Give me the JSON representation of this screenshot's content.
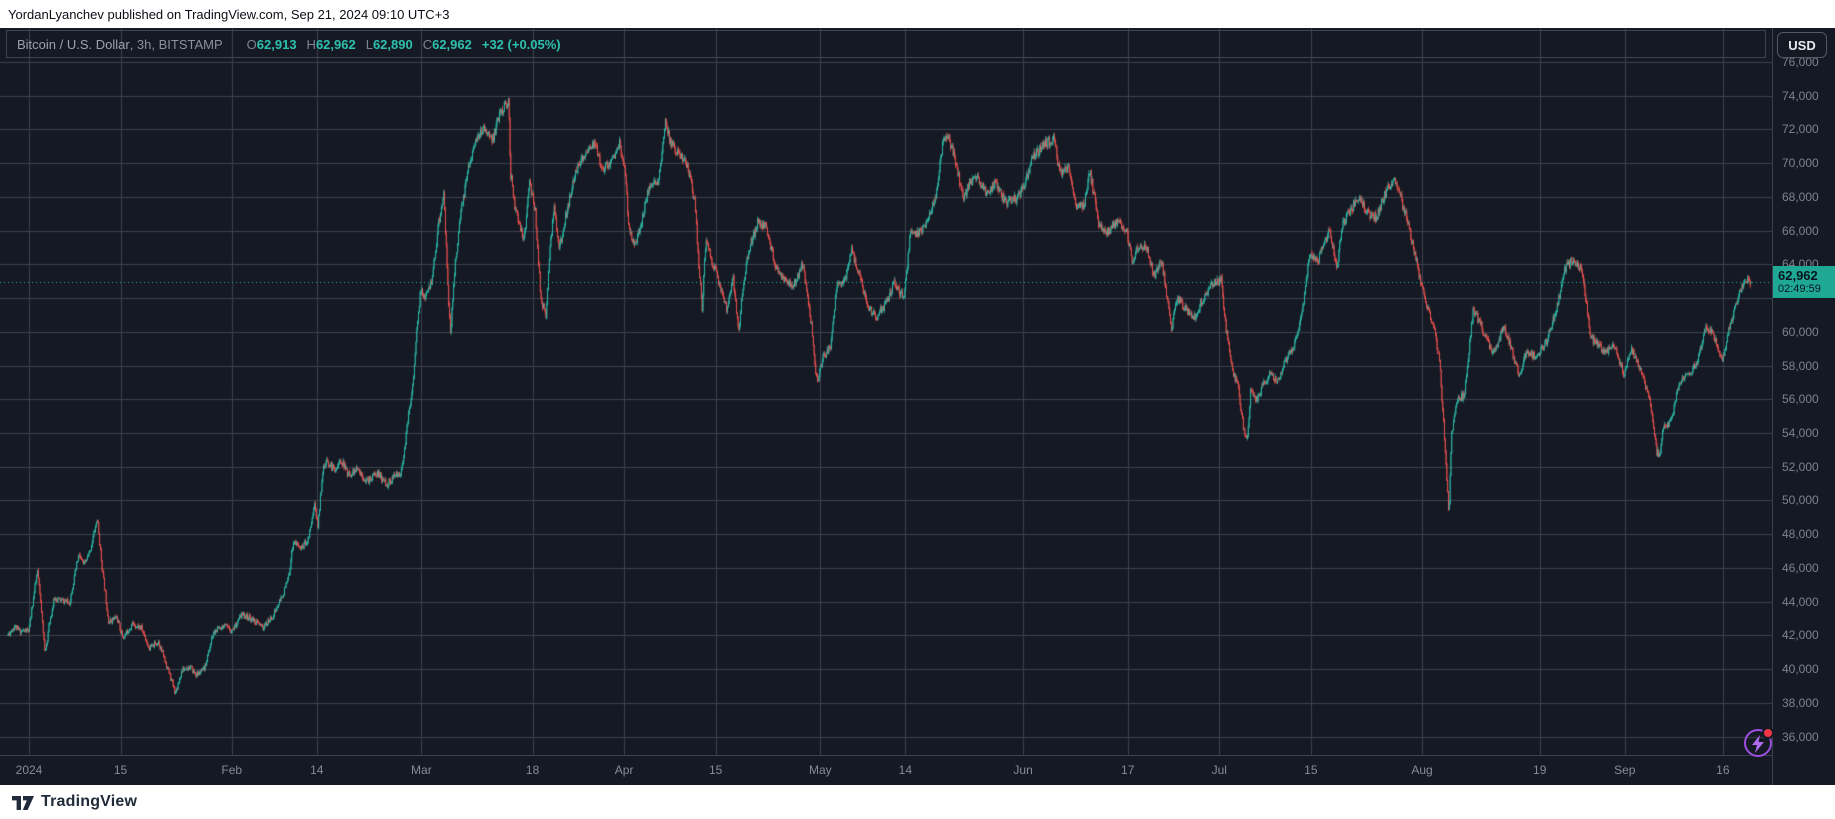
{
  "top_bar": {
    "text": "YordanLyanchev published on TradingView.com, Sep 21, 2024 09:10 UTC+3"
  },
  "legend": {
    "symbol": "Bitcoin / U.S. Dollar",
    "meta": ", 3h, BITSTAMP",
    "o_label": "O",
    "o": "62,913",
    "h_label": "H",
    "h": "62,962",
    "l_label": "L",
    "l": "62,890",
    "c_label": "C",
    "c": "62,962",
    "change": "+32 (+0.05%)"
  },
  "price_axis": {
    "currency": "USD",
    "ticks": [
      {
        "label": "76,000",
        "value": 76000
      },
      {
        "label": "74,000",
        "value": 74000
      },
      {
        "label": "72,000",
        "value": 72000
      },
      {
        "label": "70,000",
        "value": 70000
      },
      {
        "label": "68,000",
        "value": 68000
      },
      {
        "label": "66,000",
        "value": 66000
      },
      {
        "label": "64,000",
        "value": 64000
      },
      {
        "label": "62,000",
        "value": 62000
      },
      {
        "label": "60,000",
        "value": 60000
      },
      {
        "label": "58,000",
        "value": 58000
      },
      {
        "label": "56,000",
        "value": 56000
      },
      {
        "label": "54,000",
        "value": 54000
      },
      {
        "label": "52,000",
        "value": 52000
      },
      {
        "label": "50,000",
        "value": 50000
      },
      {
        "label": "48,000",
        "value": 48000
      },
      {
        "label": "46,000",
        "value": 46000
      },
      {
        "label": "44,000",
        "value": 44000
      },
      {
        "label": "42,000",
        "value": 42000
      },
      {
        "label": "40,000",
        "value": 40000
      },
      {
        "label": "38,000",
        "value": 38000
      },
      {
        "label": "36,000",
        "value": 36000
      }
    ],
    "last_price": {
      "label": "62,962",
      "countdown": "02:49:59",
      "value": 62962
    }
  },
  "time_axis": {
    "labels": [
      {
        "label": "2024",
        "day": 0
      },
      {
        "label": "15",
        "day": 14
      },
      {
        "label": "Feb",
        "day": 31
      },
      {
        "label": "14",
        "day": 44
      },
      {
        "label": "Mar",
        "day": 60
      },
      {
        "label": "18",
        "day": 77
      },
      {
        "label": "Apr",
        "day": 91
      },
      {
        "label": "15",
        "day": 105
      },
      {
        "label": "May",
        "day": 121
      },
      {
        "label": "14",
        "day": 134
      },
      {
        "label": "Jun",
        "day": 152
      },
      {
        "label": "17",
        "day": 168
      },
      {
        "label": "Jul",
        "day": 182
      },
      {
        "label": "15",
        "day": 196
      },
      {
        "label": "Aug",
        "day": 213
      },
      {
        "label": "19",
        "day": 231
      },
      {
        "label": "Sep",
        "day": 244
      },
      {
        "label": "16",
        "day": 259
      }
    ]
  },
  "footer": {
    "brand": "TradingView"
  },
  "colors": {
    "up": "#2ebdab",
    "down": "#ef5350",
    "accent": "#1fa893",
    "grid": "#3c4250",
    "bg": "#141923",
    "dotted_line": "#2bb8a6"
  },
  "chart_data": {
    "type": "candlestick",
    "title": "Bitcoin / U.S. Dollar",
    "exchange": "BITSTAMP",
    "interval": "3h",
    "x_span": "Jan 1 2024 - Sep 21 2024",
    "y_range": [
      36000,
      76000
    ],
    "current_bar": {
      "open": 62913,
      "high": 62962,
      "low": 62890,
      "close": 62962,
      "change": "+32 (+0.05%)"
    },
    "bars_per_day": 8,
    "start_day": -3.2,
    "end_day": 263.38,
    "seed": 11,
    "noise": 0.004,
    "wick_noise": 0.0032,
    "clamp_high": 73820,
    "clamp_low": 38400,
    "waypoints": [
      [
        -3.2,
        42050
      ],
      [
        -2.2,
        42550
      ],
      [
        -1.4,
        42250
      ],
      [
        0,
        42300
      ],
      [
        0.7,
        44300
      ],
      [
        1.3,
        45800
      ],
      [
        2.0,
        43200
      ],
      [
        2.45,
        40900
      ],
      [
        3.2,
        42900
      ],
      [
        3.9,
        44200
      ],
      [
        4.8,
        44100
      ],
      [
        6.2,
        43950
      ],
      [
        7.6,
        46800
      ],
      [
        8.4,
        46150
      ],
      [
        9.3,
        46950
      ],
      [
        10.45,
        48950
      ],
      [
        11.1,
        46300
      ],
      [
        12.2,
        42800
      ],
      [
        13.4,
        43100
      ],
      [
        14.4,
        41850
      ],
      [
        15.8,
        42700
      ],
      [
        17.2,
        42450
      ],
      [
        18.4,
        41250
      ],
      [
        19.8,
        41650
      ],
      [
        21.3,
        39950
      ],
      [
        22.4,
        38600
      ],
      [
        23.4,
        39950
      ],
      [
        24.6,
        40150
      ],
      [
        25.6,
        39650
      ],
      [
        26.8,
        40000
      ],
      [
        28.2,
        42150
      ],
      [
        29.6,
        42600
      ],
      [
        31,
        42300
      ],
      [
        32.6,
        43250
      ],
      [
        34.2,
        42950
      ],
      [
        35.8,
        42450
      ],
      [
        37.3,
        43150
      ],
      [
        38.8,
        44400
      ],
      [
        39.7,
        45450
      ],
      [
        40.4,
        47600
      ],
      [
        41.6,
        47150
      ],
      [
        42.7,
        47750
      ],
      [
        43.7,
        49850
      ],
      [
        44.15,
        48400
      ],
      [
        44.9,
        51750
      ],
      [
        45.6,
        52300
      ],
      [
        46.7,
        51850
      ],
      [
        47.8,
        52400
      ],
      [
        48.8,
        51550
      ],
      [
        50.2,
        51850
      ],
      [
        51.7,
        51150
      ],
      [
        53.2,
        51650
      ],
      [
        54.7,
        50950
      ],
      [
        56,
        51450
      ],
      [
        57,
        51750
      ],
      [
        57.9,
        54600
      ],
      [
        58.7,
        56900
      ],
      [
        59.4,
        60500
      ],
      [
        59.9,
        62500
      ],
      [
        60.6,
        61900
      ],
      [
        61.6,
        63100
      ],
      [
        62.6,
        66300
      ],
      [
        63.45,
        68300
      ],
      [
        63.95,
        63400
      ],
      [
        64.45,
        59900
      ],
      [
        65.1,
        63800
      ],
      [
        65.9,
        66600
      ],
      [
        67.2,
        69900
      ],
      [
        68.5,
        71400
      ],
      [
        69.7,
        72100
      ],
      [
        70.9,
        71400
      ],
      [
        71.9,
        72900
      ],
      [
        72.7,
        73400
      ],
      [
        73.35,
        73750
      ],
      [
        73.6,
        69600
      ],
      [
        74.4,
        67200
      ],
      [
        75,
        66400
      ],
      [
        75.7,
        65300
      ],
      [
        76.5,
        68900
      ],
      [
        77.4,
        67300
      ],
      [
        78.3,
        61900
      ],
      [
        79.1,
        61000
      ],
      [
        79.55,
        64400
      ],
      [
        80.3,
        67500
      ],
      [
        81.1,
        64900
      ],
      [
        82.2,
        67100
      ],
      [
        83.7,
        69600
      ],
      [
        85.2,
        70700
      ],
      [
        86.5,
        71250
      ],
      [
        87.7,
        69600
      ],
      [
        88.8,
        69950
      ],
      [
        90.3,
        71150
      ],
      [
        91.2,
        69500
      ],
      [
        91.7,
        66300
      ],
      [
        92.5,
        65200
      ],
      [
        93.4,
        66000
      ],
      [
        94.7,
        68400
      ],
      [
        96.2,
        68900
      ],
      [
        97.3,
        72400
      ],
      [
        98.2,
        71150
      ],
      [
        99.2,
        70650
      ],
      [
        100.7,
        69900
      ],
      [
        101.8,
        67700
      ],
      [
        102.45,
        63900
      ],
      [
        102.9,
        61300
      ],
      [
        103.5,
        65500
      ],
      [
        104.7,
        63900
      ],
      [
        105.8,
        62600
      ],
      [
        106.7,
        61400
      ],
      [
        107.7,
        63200
      ],
      [
        108.5,
        59900
      ],
      [
        109,
        62200
      ],
      [
        110,
        64800
      ],
      [
        111.5,
        66600
      ],
      [
        112.8,
        66200
      ],
      [
        114,
        64100
      ],
      [
        115.4,
        63100
      ],
      [
        116.9,
        62800
      ],
      [
        118.3,
        64000
      ],
      [
        119.7,
        60400
      ],
      [
        120.5,
        56900
      ],
      [
        121.4,
        58500
      ],
      [
        122.6,
        59100
      ],
      [
        123.5,
        62800
      ],
      [
        124.7,
        63000
      ],
      [
        125.8,
        64800
      ],
      [
        127.2,
        63100
      ],
      [
        128.5,
        61300
      ],
      [
        129.6,
        60900
      ],
      [
        130.8,
        61600
      ],
      [
        132.3,
        62900
      ],
      [
        133.8,
        61900
      ],
      [
        134.8,
        66100
      ],
      [
        135.8,
        65800
      ],
      [
        137,
        66300
      ],
      [
        138.5,
        67700
      ],
      [
        139.7,
        71100
      ],
      [
        140.6,
        71650
      ],
      [
        141.8,
        69900
      ],
      [
        142.9,
        67900
      ],
      [
        143.8,
        68800
      ],
      [
        145.1,
        69100
      ],
      [
        146.4,
        68200
      ],
      [
        147.9,
        68900
      ],
      [
        149.2,
        67700
      ],
      [
        150.9,
        67900
      ],
      [
        152.2,
        68700
      ],
      [
        153.6,
        70400
      ],
      [
        155,
        71050
      ],
      [
        156.7,
        71500
      ],
      [
        157.6,
        69400
      ],
      [
        158.9,
        69800
      ],
      [
        160.2,
        67200
      ],
      [
        161.4,
        67700
      ],
      [
        162.2,
        69600
      ],
      [
        163.7,
        66200
      ],
      [
        164.9,
        65900
      ],
      [
        166.4,
        66600
      ],
      [
        167.8,
        66100
      ],
      [
        168.7,
        64200
      ],
      [
        169.9,
        65200
      ],
      [
        171,
        64900
      ],
      [
        172,
        63300
      ],
      [
        173.2,
        64200
      ],
      [
        174.7,
        60200
      ],
      [
        175.6,
        62000
      ],
      [
        176.9,
        61400
      ],
      [
        178.2,
        60900
      ],
      [
        179.4,
        61900
      ],
      [
        180.9,
        62800
      ],
      [
        182.3,
        63100
      ],
      [
        183,
        60300
      ],
      [
        183.9,
        57900
      ],
      [
        184.9,
        56700
      ],
      [
        185.8,
        54000
      ],
      [
        186.3,
        53650
      ],
      [
        186.8,
        56500
      ],
      [
        187.7,
        55900
      ],
      [
        188.7,
        56900
      ],
      [
        189.9,
        57600
      ],
      [
        190.9,
        57000
      ],
      [
        192.2,
        58400
      ],
      [
        193.6,
        59300
      ],
      [
        194.7,
        61100
      ],
      [
        195.8,
        64600
      ],
      [
        197,
        64100
      ],
      [
        197.9,
        65200
      ],
      [
        198.9,
        66000
      ],
      [
        200,
        63900
      ],
      [
        200.9,
        66400
      ],
      [
        202.2,
        67300
      ],
      [
        203.4,
        68000
      ],
      [
        204.9,
        66900
      ],
      [
        206,
        66800
      ],
      [
        207.4,
        68200
      ],
      [
        208.7,
        69100
      ],
      [
        209.9,
        67800
      ],
      [
        210.8,
        66600
      ],
      [
        211.9,
        64600
      ],
      [
        212.8,
        63000
      ],
      [
        213.7,
        61500
      ],
      [
        214.9,
        60300
      ],
      [
        215.7,
        58200
      ],
      [
        216.6,
        52800
      ],
      [
        217.1,
        49250
      ],
      [
        217.55,
        54000
      ],
      [
        218.3,
        55900
      ],
      [
        219.5,
        56300
      ],
      [
        220.8,
        61300
      ],
      [
        221.9,
        60600
      ],
      [
        223,
        59400
      ],
      [
        224,
        58700
      ],
      [
        225.5,
        60400
      ],
      [
        226.8,
        58800
      ],
      [
        227.9,
        57400
      ],
      [
        229,
        58900
      ],
      [
        230.5,
        58500
      ],
      [
        232,
        59400
      ],
      [
        233.5,
        61300
      ],
      [
        235,
        63900
      ],
      [
        236.1,
        64250
      ],
      [
        237.5,
        63700
      ],
      [
        238.8,
        59700
      ],
      [
        239.9,
        59200
      ],
      [
        241,
        58900
      ],
      [
        242.5,
        59100
      ],
      [
        243.9,
        57500
      ],
      [
        245,
        59100
      ],
      [
        246.3,
        57800
      ],
      [
        247.8,
        56100
      ],
      [
        248.9,
        52900
      ],
      [
        249.4,
        52700
      ],
      [
        249.9,
        54300
      ],
      [
        251,
        54700
      ],
      [
        252.5,
        57100
      ],
      [
        253.9,
        57500
      ],
      [
        255.1,
        58200
      ],
      [
        256.5,
        60400
      ],
      [
        257.8,
        59700
      ],
      [
        258.9,
        58300
      ],
      [
        260,
        60300
      ],
      [
        261.1,
        61800
      ],
      [
        262.1,
        62900
      ],
      [
        262.9,
        63300
      ],
      [
        263.15,
        62600
      ],
      [
        263.38,
        62962
      ]
    ]
  }
}
